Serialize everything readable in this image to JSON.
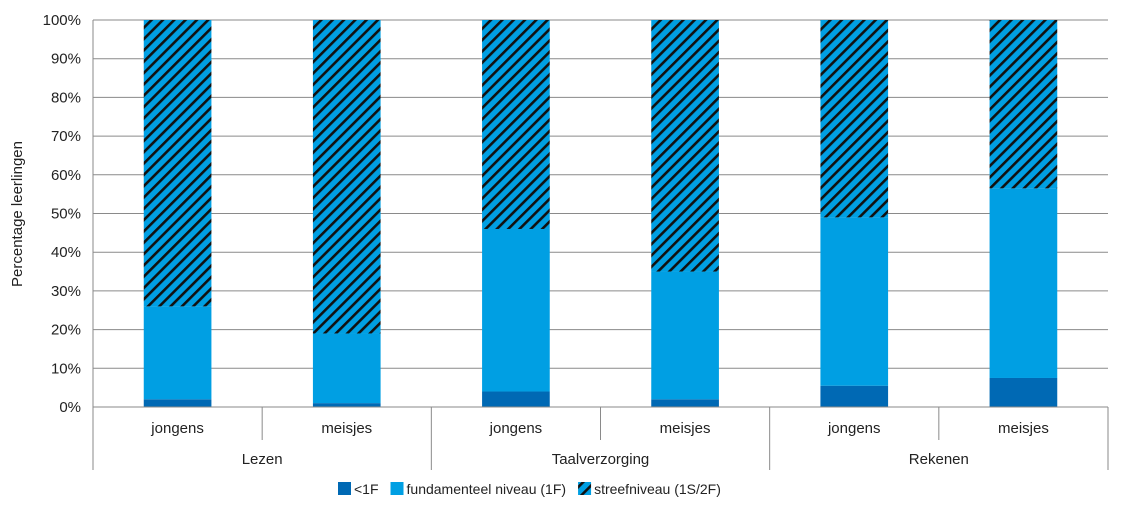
{
  "chart_data": {
    "type": "bar",
    "stacked": true,
    "ylabel": "Percentage leerlingen",
    "ylim": [
      0,
      100
    ],
    "y_ticks": [
      "0%",
      "10%",
      "20%",
      "30%",
      "40%",
      "50%",
      "60%",
      "70%",
      "80%",
      "90%",
      "100%"
    ],
    "groups": [
      "Lezen",
      "Taalverzorging",
      "Rekenen"
    ],
    "categories": [
      "jongens",
      "meisjes",
      "jongens",
      "meisjes",
      "jongens",
      "meisjes"
    ],
    "series": [
      {
        "name": "<1F",
        "color": "#0069b4",
        "pattern": "solid",
        "values": [
          2,
          1,
          4,
          2,
          5.5,
          7.5
        ]
      },
      {
        "name": "fundamenteel niveau (1F)",
        "color": "#009fe3",
        "pattern": "solid",
        "values": [
          24,
          18,
          42,
          33,
          43.5,
          49
        ]
      },
      {
        "name": "streefniveau (1S/2F)",
        "color": "#009fe3",
        "pattern": "hatched",
        "values": [
          74,
          81,
          54,
          65,
          51,
          43.5
        ]
      }
    ],
    "grid": true,
    "legend_position": "bottom"
  }
}
